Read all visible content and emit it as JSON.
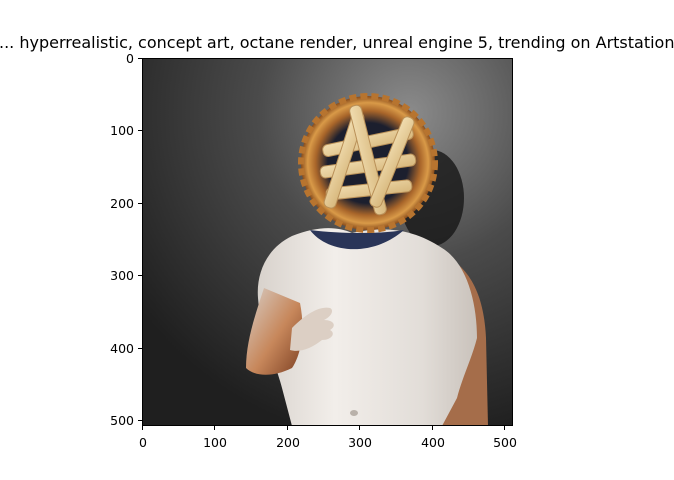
{
  "figure": {
    "title": "...  hyperrealistic, concept art, octane render, unreal engine 5, trending on Artstation"
  },
  "image": {
    "description_icon": "pie-head-figure-image",
    "background_color": "#3a3a3a",
    "pie_crust_color": "#c9883a",
    "filling_color": "#1c1f2e",
    "body_color": "#e9e4df",
    "arm_color": "#b86a3d"
  },
  "axes": {
    "x_ticks": [
      "0",
      "100",
      "200",
      "300",
      "400",
      "500"
    ],
    "y_ticks": [
      "0",
      "100",
      "200",
      "300",
      "400",
      "500"
    ]
  }
}
